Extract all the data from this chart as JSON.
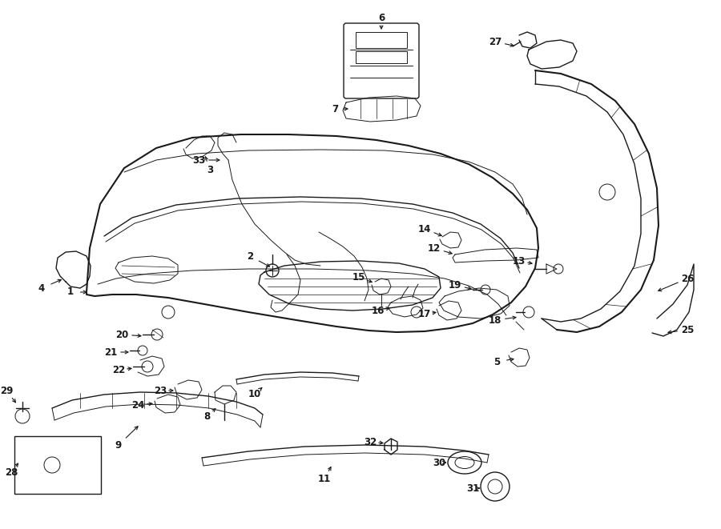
{
  "bg_color": "#ffffff",
  "line_color": "#1a1a1a",
  "lw_thin": 0.7,
  "lw_med": 1.0,
  "lw_thick": 1.5,
  "label_fs": 8.5
}
